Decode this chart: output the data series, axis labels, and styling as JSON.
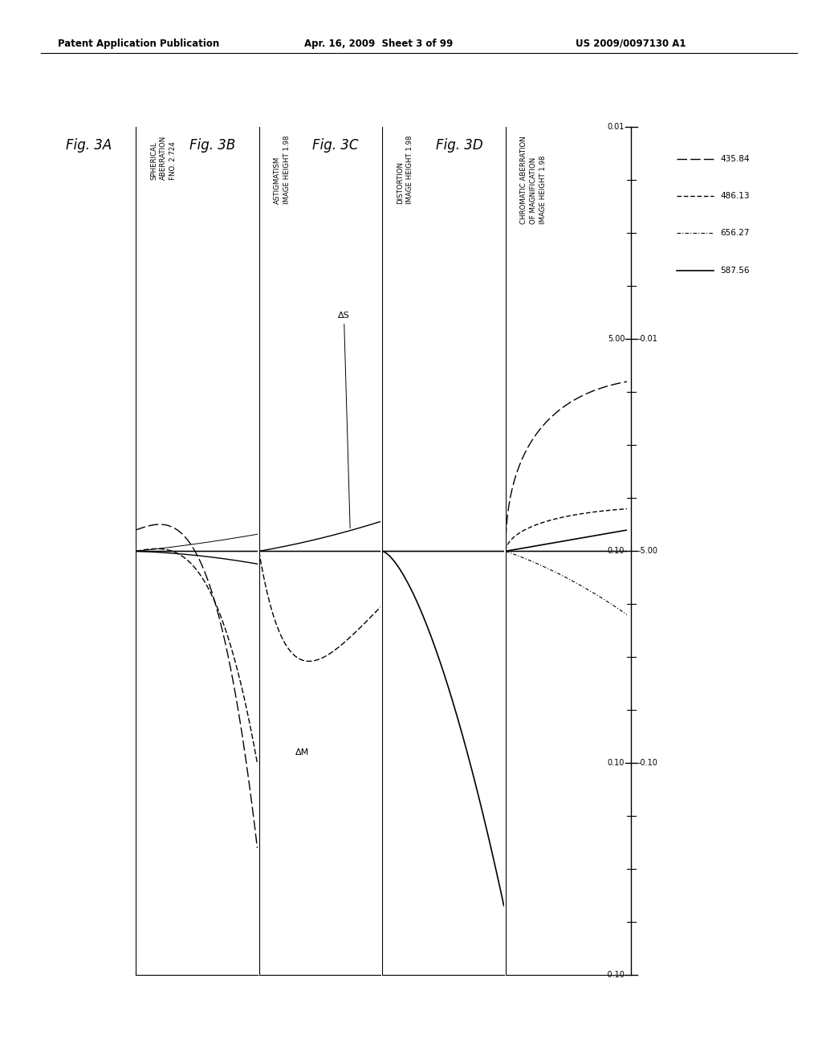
{
  "header_left": "Patent Application Publication",
  "header_center": "Apr. 16, 2009  Sheet 3 of 99",
  "header_right": "US 2009/0097130 A1",
  "fig_labels": [
    "Fig. 3A",
    "Fig. 3B",
    "Fig. 3C",
    "Fig. 3D"
  ],
  "subplot_titles_3A": "SPHERICAL\nABERRATION\nFNO. 2.724",
  "subplot_titles_3B": "ASTIGMATISM\nIMAGE HEIGHT 1.98",
  "subplot_titles_3C": "DISTORTION\nIMAGE HEIGHT 1.98",
  "subplot_titles_3D": "CHROMATIC ABERRATION\nOF MAGNIFICATION\nIMAGE HEIGHT 1.98",
  "legend_wavelengths": [
    "435.84",
    "486.13",
    "656.27",
    "587.56"
  ],
  "background_color": "#ffffff",
  "line_color": "#000000",
  "axis_right_labels": [
    "-0.10",
    "0.10-0.10",
    "0.10-5.00",
    "5.00-0.01",
    "0.01"
  ],
  "fig3A_xlim": [
    -0.1,
    0.1
  ],
  "fig3B_xlim": [
    -0.1,
    0.1
  ],
  "fig3C_xlim": [
    -5.0,
    5.0
  ],
  "fig3D_xlim": [
    -0.01,
    0.01
  ]
}
